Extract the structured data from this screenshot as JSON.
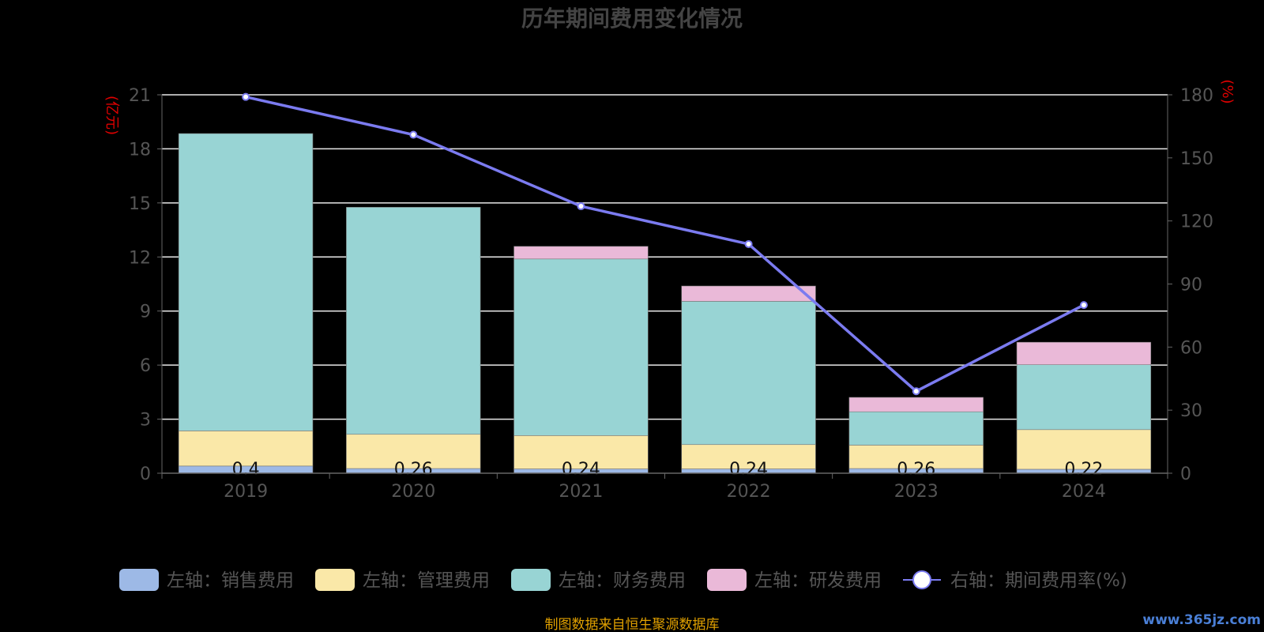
{
  "chart_data": {
    "type": "bar",
    "title": "历年期间费用变化情况",
    "left_unit": "(亿元)",
    "right_unit": "(%)",
    "categories": [
      "2019",
      "2020",
      "2021",
      "2022",
      "2023",
      "2024"
    ],
    "left_ylim": [
      0,
      21
    ],
    "left_ticks": [
      "0",
      "3",
      "6",
      "9",
      "12",
      "15",
      "18",
      "21"
    ],
    "right_ylim": [
      0,
      180
    ],
    "right_ticks": [
      "0",
      "30",
      "60",
      "90",
      "120",
      "150",
      "180"
    ],
    "series": [
      {
        "name": "左轴：销售费用",
        "axis": "left",
        "color": "#9db9e6",
        "values": [
          0.4,
          0.26,
          0.24,
          0.24,
          0.26,
          0.22
        ],
        "labels": [
          "0.4",
          "0.26",
          "0.24",
          "0.24",
          "0.26",
          "0.22"
        ]
      },
      {
        "name": "左轴：管理费用",
        "axis": "left",
        "color": "#fae8a8",
        "values": [
          1.95,
          1.9,
          1.85,
          1.35,
          1.3,
          2.2
        ]
      },
      {
        "name": "左轴：财务费用",
        "axis": "left",
        "color": "#98d4d4",
        "values": [
          16.5,
          12.6,
          9.8,
          7.95,
          1.85,
          3.6
        ]
      },
      {
        "name": "左轴：研发费用",
        "axis": "left",
        "color": "#eab9d8",
        "values": [
          0,
          0,
          0.7,
          0.85,
          0.8,
          1.25
        ]
      },
      {
        "name": "右轴：期间费用率(%)",
        "axis": "right",
        "type": "line",
        "color": "#7b7bf0",
        "values": [
          179,
          161,
          127,
          109,
          39,
          80
        ]
      }
    ],
    "grid": true,
    "legend_position": "bottom"
  },
  "footer": {
    "source": "制图数据来自恒生聚源数据库",
    "watermark": "www.365jz.com"
  }
}
